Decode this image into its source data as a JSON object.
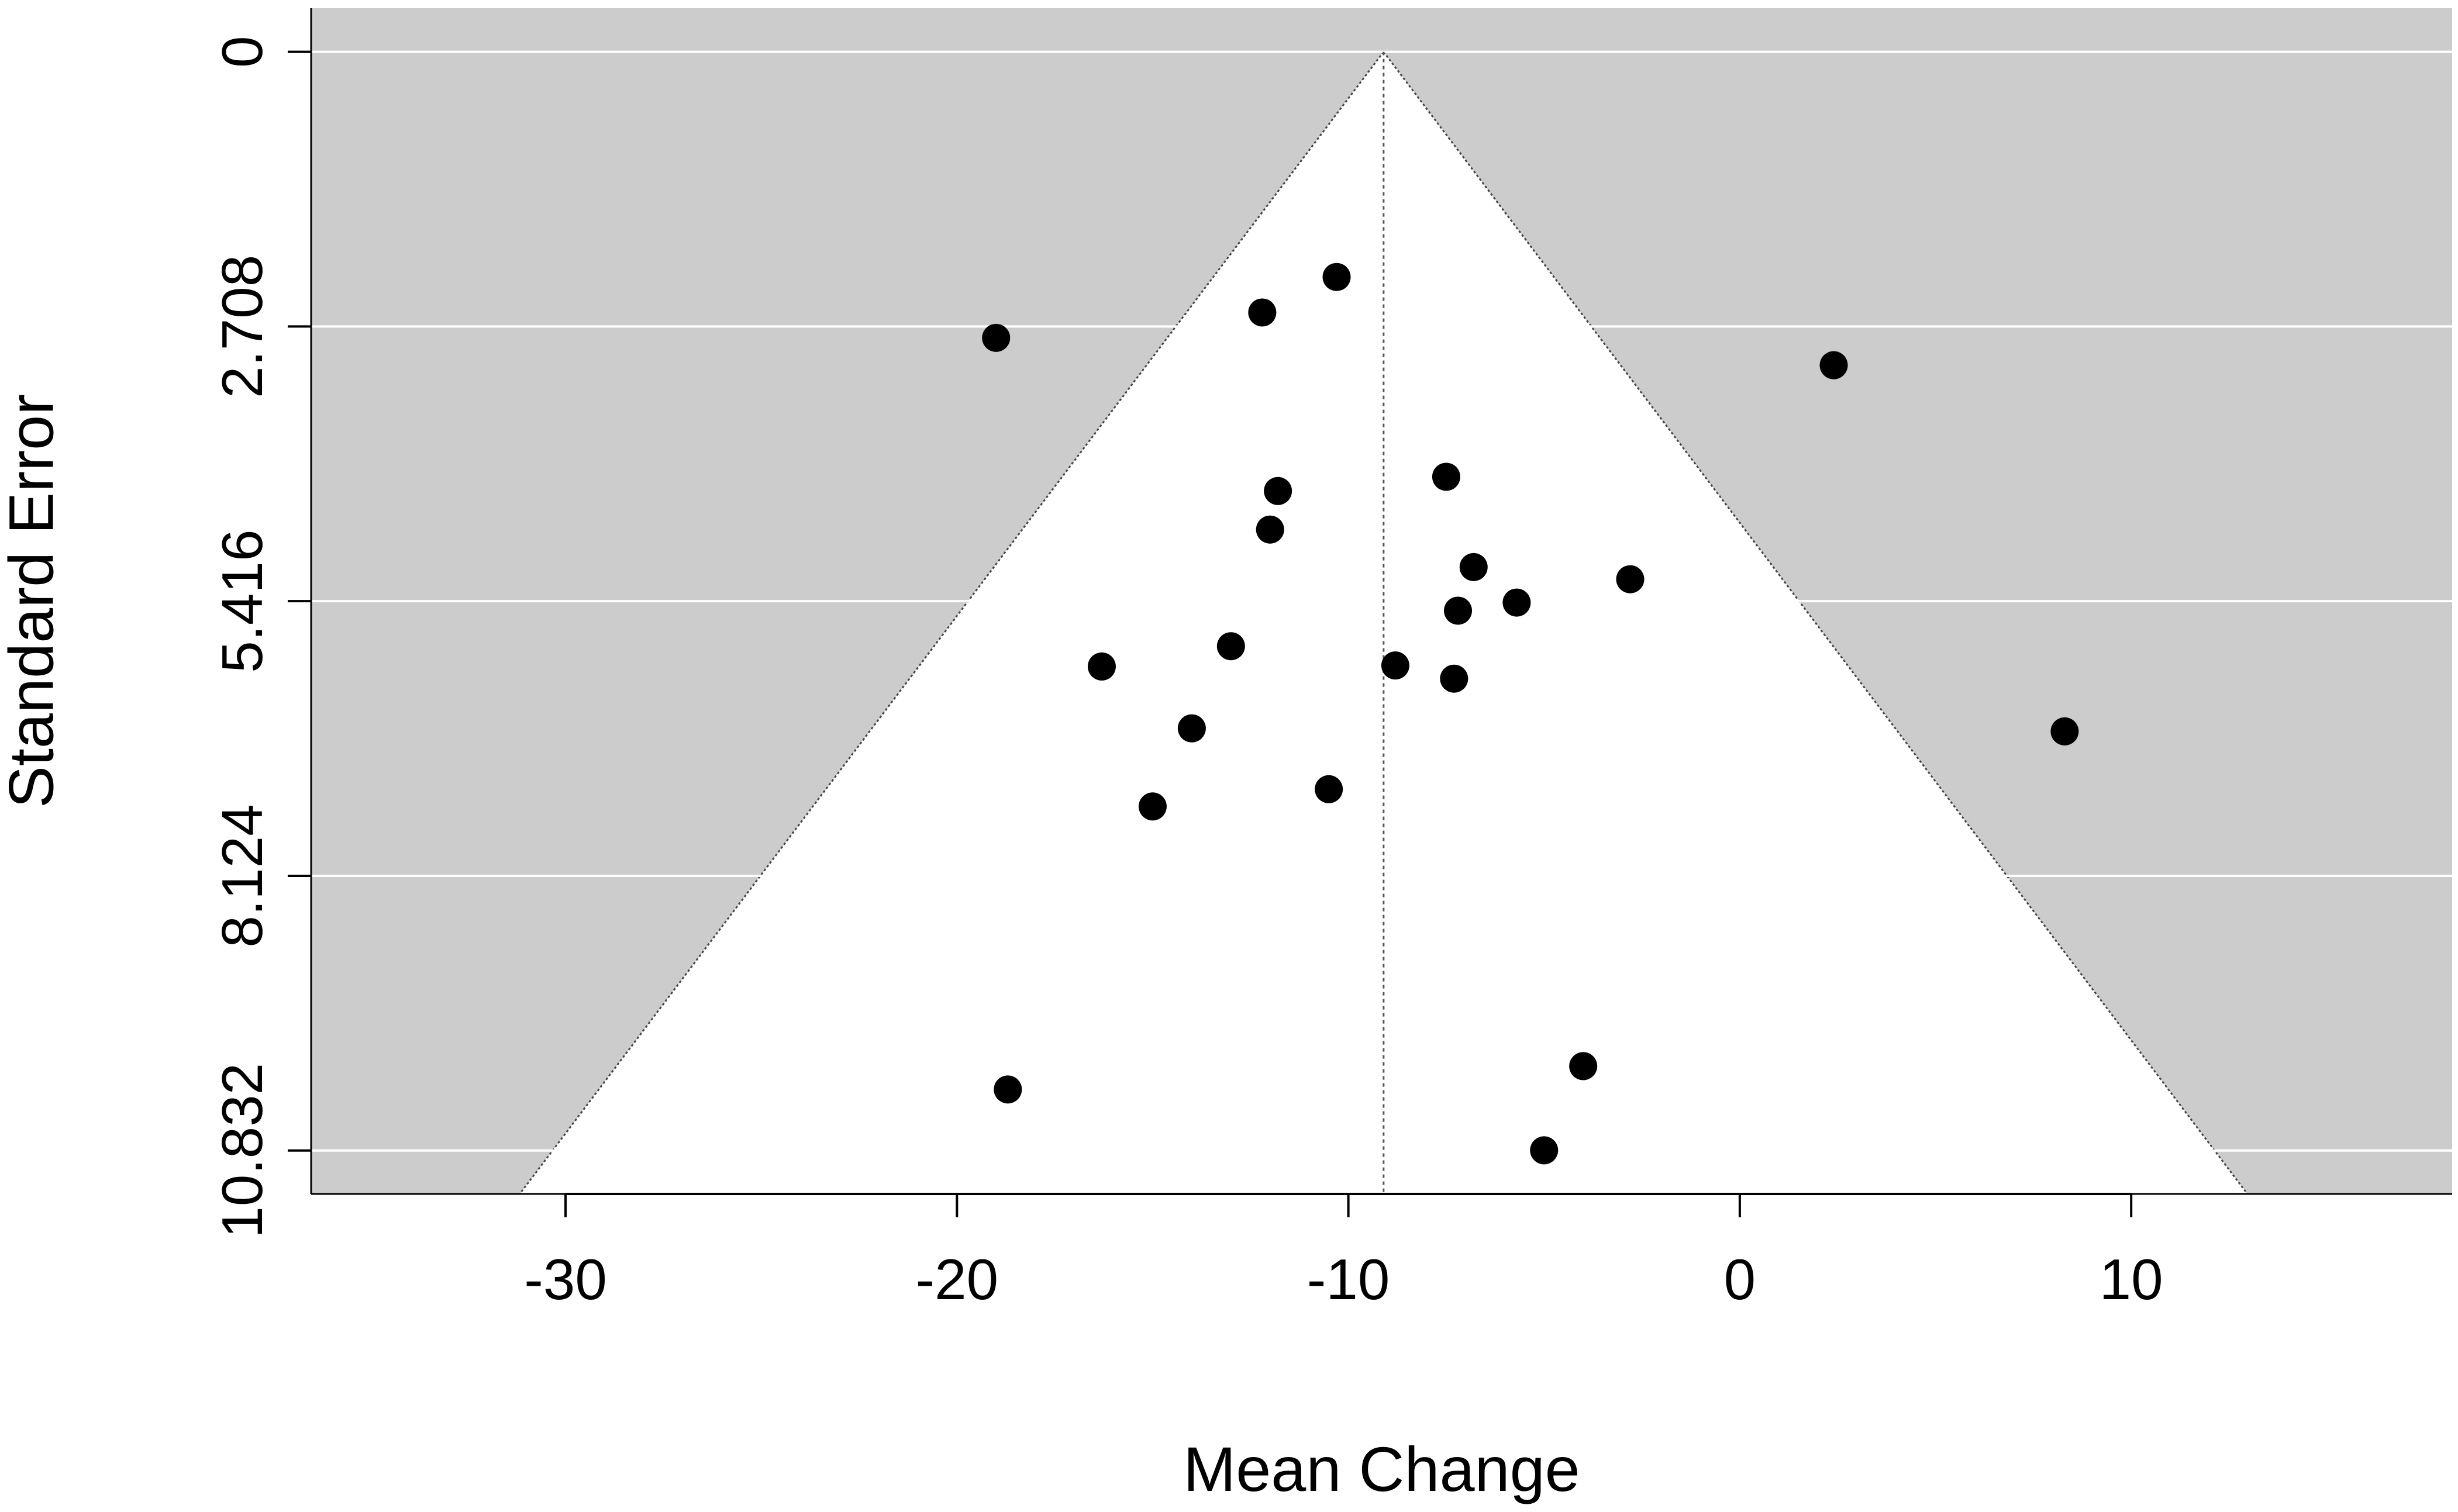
{
  "chart_data": {
    "type": "scatter",
    "subtype": "funnel-plot",
    "title": "",
    "xlabel": "Mean Change",
    "ylabel": "Standard Error",
    "xlim": [
      -36.5,
      18.2
    ],
    "ylim": [
      11.26,
      -0.43
    ],
    "y_reversed": true,
    "x_ticks": [
      -30,
      -20,
      -10,
      0,
      10
    ],
    "x_tick_labels": [
      "-30",
      "-20",
      "-10",
      "0",
      "10"
    ],
    "y_ticks": [
      0,
      2.708,
      5.416,
      8.124,
      10.832
    ],
    "y_tick_labels": [
      "0",
      "2.708",
      "5.416",
      "8.124",
      "10.832"
    ],
    "grid": "horizontal",
    "pooled_estimate": -9.1,
    "funnel_multiplier": 1.96,
    "colors": {
      "background": "#cccccc",
      "funnel": "#ffffff",
      "grid": "#ffffff",
      "points": "#000000",
      "reference_line": "#555555"
    },
    "points": [
      {
        "x": -10.3,
        "y": 2.22
      },
      {
        "x": -12.2,
        "y": 2.57
      },
      {
        "x": -19.0,
        "y": 2.82
      },
      {
        "x": 2.4,
        "y": 3.09
      },
      {
        "x": -7.5,
        "y": 4.19
      },
      {
        "x": -11.8,
        "y": 4.33
      },
      {
        "x": -12.0,
        "y": 4.71
      },
      {
        "x": -6.8,
        "y": 5.08
      },
      {
        "x": -2.8,
        "y": 5.2
      },
      {
        "x": -5.7,
        "y": 5.43
      },
      {
        "x": -7.2,
        "y": 5.51
      },
      {
        "x": -13.0,
        "y": 5.86
      },
      {
        "x": -8.8,
        "y": 6.05
      },
      {
        "x": -16.3,
        "y": 6.06
      },
      {
        "x": -7.3,
        "y": 6.18
      },
      {
        "x": -14.0,
        "y": 6.67
      },
      {
        "x": 8.3,
        "y": 6.7
      },
      {
        "x": -10.5,
        "y": 7.27
      },
      {
        "x": -15.0,
        "y": 7.44
      },
      {
        "x": -4.0,
        "y": 10.0
      },
      {
        "x": -18.7,
        "y": 10.23
      },
      {
        "x": -5.0,
        "y": 10.83
      }
    ]
  }
}
